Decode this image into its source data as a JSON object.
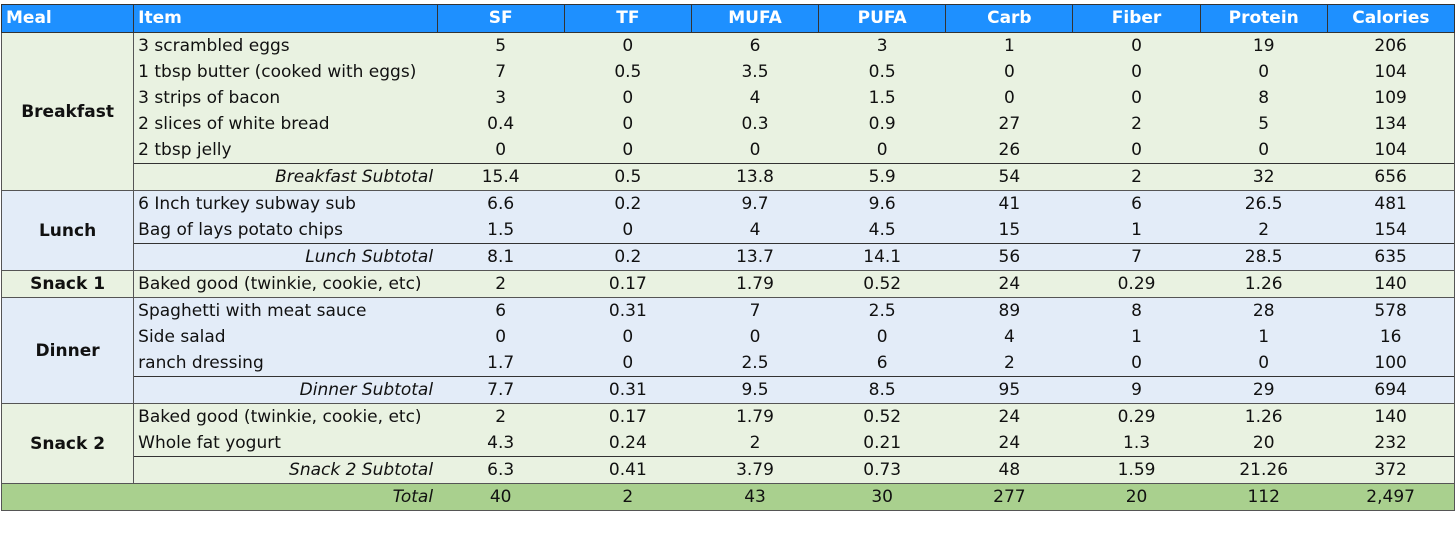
{
  "headers": [
    "Meal",
    "Item",
    "SF",
    "TF",
    "MUFA",
    "PUFA",
    "Carb",
    "Fiber",
    "Protein",
    "Calories"
  ],
  "colors": {
    "header_bg": "#1e90ff",
    "green_band": "#e9f2e1",
    "blue_band": "#e3ecf8",
    "total_bg": "#a9d08e"
  },
  "meals": [
    {
      "name": "Breakfast",
      "band": "green",
      "items": [
        {
          "item": "3 scrambled eggs",
          "values": [
            "5",
            "0",
            "6",
            "3",
            "1",
            "0",
            "19",
            "206"
          ]
        },
        {
          "item": "1 tbsp butter (cooked with eggs)",
          "values": [
            "7",
            "0.5",
            "3.5",
            "0.5",
            "0",
            "0",
            "0",
            "104"
          ]
        },
        {
          "item": "3 strips of bacon",
          "values": [
            "3",
            "0",
            "4",
            "1.5",
            "0",
            "0",
            "8",
            "109"
          ]
        },
        {
          "item": "2 slices of white bread",
          "values": [
            "0.4",
            "0",
            "0.3",
            "0.9",
            "27",
            "2",
            "5",
            "134"
          ]
        },
        {
          "item": "2 tbsp jelly",
          "values": [
            "0",
            "0",
            "0",
            "0",
            "26",
            "0",
            "0",
            "104"
          ]
        }
      ],
      "subtotal": {
        "label": "Breakfast Subtotal",
        "values": [
          "15.4",
          "0.5",
          "13.8",
          "5.9",
          "54",
          "2",
          "32",
          "656"
        ]
      }
    },
    {
      "name": "Lunch",
      "band": "blue",
      "items": [
        {
          "item": "6 Inch turkey subway sub",
          "values": [
            "6.6",
            "0.2",
            "9.7",
            "9.6",
            "41",
            "6",
            "26.5",
            "481"
          ]
        },
        {
          "item": "Bag of lays potato chips",
          "values": [
            "1.5",
            "0",
            "4",
            "4.5",
            "15",
            "1",
            "2",
            "154"
          ]
        }
      ],
      "subtotal": {
        "label": "Lunch Subtotal",
        "values": [
          "8.1",
          "0.2",
          "13.7",
          "14.1",
          "56",
          "7",
          "28.5",
          "635"
        ]
      }
    },
    {
      "name": "Snack 1",
      "band": "green",
      "items": [
        {
          "item": "Baked good (twinkie, cookie, etc)",
          "values": [
            "2",
            "0.17",
            "1.79",
            "0.52",
            "24",
            "0.29",
            "1.26",
            "140"
          ]
        }
      ]
    },
    {
      "name": "Dinner",
      "band": "blue",
      "items": [
        {
          "item": "Spaghetti with meat sauce",
          "values": [
            "6",
            "0.31",
            "7",
            "2.5",
            "89",
            "8",
            "28",
            "578"
          ]
        },
        {
          "item": "Side salad",
          "values": [
            "0",
            "0",
            "0",
            "0",
            "4",
            "1",
            "1",
            "16"
          ]
        },
        {
          "item": "ranch dressing",
          "values": [
            "1.7",
            "0",
            "2.5",
            "6",
            "2",
            "0",
            "0",
            "100"
          ]
        }
      ],
      "subtotal": {
        "label": "Dinner Subtotal",
        "values": [
          "7.7",
          "0.31",
          "9.5",
          "8.5",
          "95",
          "9",
          "29",
          "694"
        ]
      }
    },
    {
      "name": "Snack 2",
      "band": "green",
      "items": [
        {
          "item": "Baked good (twinkie, cookie, etc)",
          "values": [
            "2",
            "0.17",
            "1.79",
            "0.52",
            "24",
            "0.29",
            "1.26",
            "140"
          ]
        },
        {
          "item": "Whole fat yogurt",
          "values": [
            "4.3",
            "0.24",
            "2",
            "0.21",
            "24",
            "1.3",
            "20",
            "232"
          ]
        }
      ],
      "subtotal": {
        "label": "Snack 2 Subtotal",
        "values": [
          "6.3",
          "0.41",
          "3.79",
          "0.73",
          "48",
          "1.59",
          "21.26",
          "372"
        ]
      }
    }
  ],
  "total": {
    "label": "Total",
    "values": [
      "40",
      "2",
      "43",
      "30",
      "277",
      "20",
      "112",
      "2,497"
    ]
  }
}
